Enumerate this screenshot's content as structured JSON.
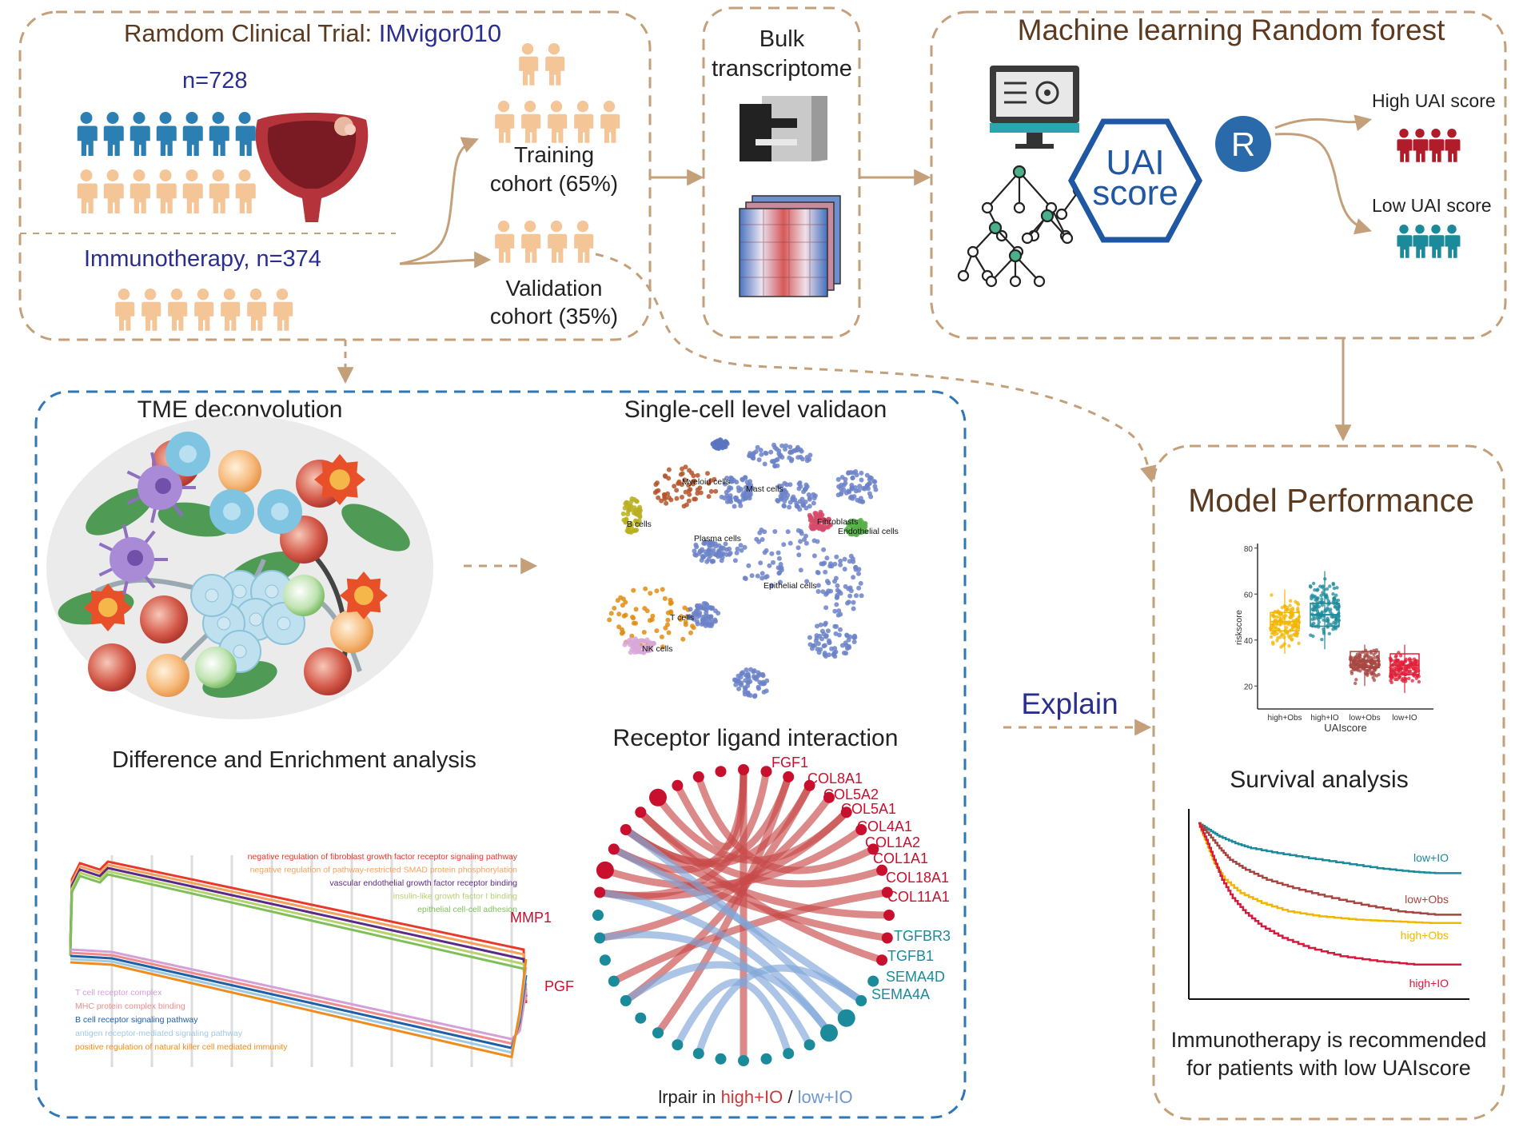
{
  "colors": {
    "tan": "#c4a07a",
    "person_tan": "#f3c597",
    "person_blue": "#2c7fb3",
    "navy": "#2a2f8f",
    "brown_text": "#5b3a1f",
    "blue_dash": "#2f77b5",
    "red": "#c8102e",
    "teal": "#1b8a9a",
    "hex_blue": "#1f57a3"
  },
  "icons": [
    "people-icon",
    "bladder-icon",
    "sequencer-icon",
    "heatmap-icon",
    "computer-icon",
    "tree-icon",
    "r-logo-icon",
    "umap-icon",
    "tme-icon"
  ],
  "trial": {
    "title_prefix": "Ramdom Clinical Trial: ",
    "title_name": "IMvigor010",
    "n_label": "n=728",
    "immuno_label": "Immunotherapy, n=374"
  },
  "cohorts": {
    "training": [
      "Training",
      "cohort (65%)"
    ],
    "validation": [
      "Validation",
      "cohort (35%)"
    ]
  },
  "bulk": {
    "title": [
      "Bulk",
      "transcriptome"
    ]
  },
  "ml": {
    "title": "Machine learning Random forest",
    "uai": [
      "UAI",
      "score"
    ],
    "r_label": "R",
    "high_label": "High UAI score",
    "low_label": "Low UAI score"
  },
  "tme": {
    "title": "TME deconvolution",
    "enrich_title": "Difference and Enrichment analysis",
    "up_terms": [
      "negative regulation of fibroblast growth factor receptor signaling pathway",
      "negative regulation of pathway-restricted SMAD protein phosphorylation",
      "vascular endothelial growth factor receptor binding",
      "insulin-like growth factor I binding",
      "epithelial cell-cell adhesion"
    ],
    "up_colors": [
      "#e8392b",
      "#f5a25d",
      "#5b2a86",
      "#b5d36b",
      "#7fbf5a"
    ],
    "down_terms": [
      "T cell receptor complex",
      "MHC protein complex binding",
      "B cell receptor signaling pathway",
      "antigen receptor-mediated signaling pathway",
      "positive regulation of natural killer cell mediated immunity"
    ],
    "down_colors": [
      "#d4a0d8",
      "#f08b8b",
      "#1f5fa8",
      "#9ecae1",
      "#f08c1e"
    ]
  },
  "singlecell": {
    "title": "Single-cell level validaon",
    "clusters": [
      "Myeloid cells",
      "Mast cells",
      "B cells",
      "Plasma cells",
      "Fibroblasts",
      "Endothelial cells",
      "Epithelial cells",
      "T cells",
      "NK cells"
    ]
  },
  "receptor": {
    "title": "Receptor ligand interaction",
    "red_labels": [
      "FGF1",
      "COL8A1",
      "COL5A2",
      "COL5A1",
      "COL4A1",
      "COL1A2",
      "COL1A1",
      "COL18A1",
      "COL11A1",
      "MMP1",
      "PGF"
    ],
    "teal_labels": [
      "TGFBR3",
      "TGFB1",
      "SEMA4D",
      "SEMA4A"
    ],
    "caption_prefix": "lrpair in ",
    "caption_high": "high+IO",
    "caption_sep": " /  ",
    "caption_low": "low+IO"
  },
  "explain": "Explain",
  "performance": {
    "title": "Model Performance",
    "survival_title": "Survival analysis",
    "conclusion": [
      "Immunotherapy is recommended",
      "for patients with low UAIscore"
    ]
  },
  "chart_data": [
    {
      "type": "box",
      "xlabel": "UAIscore",
      "ylabel": "riskscore",
      "categories": [
        "high+Obs",
        "high+IO",
        "low+Obs",
        "low+IO"
      ],
      "ylim": [
        10,
        82
      ],
      "yticks": [
        20,
        40,
        60,
        80
      ],
      "medians": [
        48,
        51,
        31,
        29
      ],
      "q1": [
        44,
        46,
        28,
        25
      ],
      "q3": [
        52,
        56,
        35,
        34
      ],
      "whisker_low": [
        34,
        36,
        20,
        17
      ],
      "whisker_high": [
        62,
        70,
        38,
        38
      ],
      "colors": [
        "#f2b600",
        "#1b8a9a",
        "#a84540",
        "#e0203a"
      ]
    },
    {
      "type": "line",
      "title": "Survival analysis",
      "series": [
        {
          "name": "low+IO",
          "color": "#1b8a9a",
          "x": [
            0,
            0.04,
            0.08,
            0.14,
            0.2,
            0.3,
            0.42,
            0.55,
            0.68,
            0.8,
            0.9,
            1.0
          ],
          "y": [
            1.0,
            0.96,
            0.92,
            0.88,
            0.85,
            0.82,
            0.79,
            0.76,
            0.73,
            0.71,
            0.7,
            0.7
          ]
        },
        {
          "name": "low+Obs",
          "color": "#a84540",
          "x": [
            0,
            0.04,
            0.08,
            0.12,
            0.18,
            0.26,
            0.36,
            0.48,
            0.62,
            0.76,
            0.9,
            1.0
          ],
          "y": [
            1.0,
            0.93,
            0.85,
            0.78,
            0.72,
            0.66,
            0.61,
            0.56,
            0.51,
            0.47,
            0.45,
            0.45
          ]
        },
        {
          "name": "high+Obs",
          "color": "#f2b600",
          "x": [
            0,
            0.03,
            0.06,
            0.1,
            0.16,
            0.24,
            0.34,
            0.46,
            0.6,
            0.74,
            0.88,
            1.0
          ],
          "y": [
            1.0,
            0.88,
            0.76,
            0.66,
            0.58,
            0.52,
            0.47,
            0.44,
            0.42,
            0.41,
            0.4,
            0.4
          ]
        },
        {
          "name": "high+IO",
          "color": "#d7193c",
          "x": [
            0,
            0.03,
            0.06,
            0.09,
            0.13,
            0.18,
            0.24,
            0.32,
            0.42,
            0.54,
            0.68,
            0.82,
            1.0
          ],
          "y": [
            1.0,
            0.9,
            0.78,
            0.66,
            0.55,
            0.46,
            0.38,
            0.31,
            0.25,
            0.2,
            0.17,
            0.15,
            0.15
          ]
        }
      ]
    }
  ]
}
